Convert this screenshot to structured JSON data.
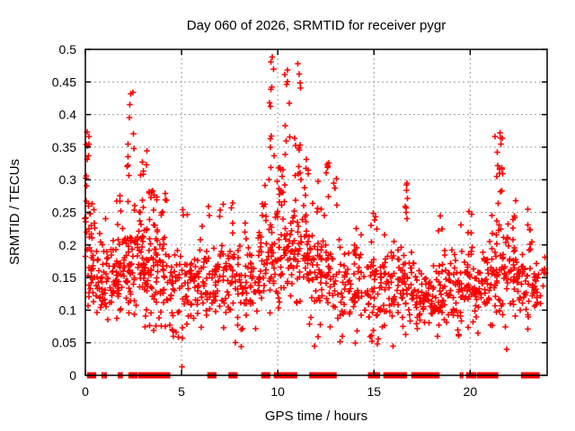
{
  "title": "Day 060 of 2026, SRMTID for receiver pygr",
  "chart_data": {
    "type": "scatter",
    "title": "Day 060 of 2026, SRMTID for receiver pygr",
    "xlabel": "GPS time / hours",
    "ylabel": "SRMTID / TECUs",
    "xlim": [
      0,
      24
    ],
    "ylim": [
      0,
      0.5
    ],
    "xtick_values": [
      0,
      5,
      10,
      15,
      20
    ],
    "xtick_labels": [
      "0",
      "5",
      "10",
      "15",
      "20"
    ],
    "ytick_values": [
      0,
      0.05,
      0.1,
      0.15,
      0.2,
      0.25,
      0.3,
      0.35,
      0.4,
      0.45,
      0.5
    ],
    "ytick_labels": [
      "0",
      "0.05",
      "0.1",
      "0.15",
      "0.2",
      "0.25",
      "0.3",
      "0.35",
      "0.4",
      "0.45",
      "0.5"
    ],
    "grid": true,
    "legend": "none",
    "marker": {
      "shape": "plus",
      "color": "#ff0000",
      "size": 7
    },
    "grid_color": "#9c9c9c",
    "axis_color": "#000000",
    "cloud_bins_format": [
      "hour_start",
      "hour_end",
      "count",
      "y_low",
      "y_high"
    ],
    "cloud_bins": [
      [
        0.0,
        0.5,
        40,
        0.09,
        0.3
      ],
      [
        0.5,
        1.0,
        30,
        0.09,
        0.2
      ],
      [
        1.0,
        1.5,
        32,
        0.09,
        0.22
      ],
      [
        1.5,
        2.0,
        36,
        0.08,
        0.24
      ],
      [
        2.0,
        2.5,
        38,
        0.09,
        0.26
      ],
      [
        2.5,
        3.0,
        38,
        0.09,
        0.26
      ],
      [
        3.0,
        3.5,
        40,
        0.08,
        0.26
      ],
      [
        3.5,
        4.0,
        36,
        0.08,
        0.24
      ],
      [
        4.0,
        4.5,
        30,
        0.08,
        0.22
      ],
      [
        4.5,
        5.0,
        26,
        0.07,
        0.2
      ],
      [
        5.0,
        5.5,
        26,
        0.06,
        0.2
      ],
      [
        5.5,
        6.0,
        28,
        0.08,
        0.21
      ],
      [
        6.0,
        6.5,
        28,
        0.08,
        0.22
      ],
      [
        6.5,
        7.0,
        26,
        0.08,
        0.2
      ],
      [
        7.0,
        7.5,
        26,
        0.08,
        0.21
      ],
      [
        7.5,
        8.0,
        26,
        0.05,
        0.22
      ],
      [
        8.0,
        8.5,
        28,
        0.08,
        0.22
      ],
      [
        8.5,
        9.0,
        26,
        0.08,
        0.2
      ],
      [
        9.0,
        9.5,
        30,
        0.09,
        0.24
      ],
      [
        9.5,
        10.0,
        34,
        0.1,
        0.28
      ],
      [
        10.0,
        10.5,
        34,
        0.1,
        0.3
      ],
      [
        10.5,
        11.0,
        32,
        0.1,
        0.28
      ],
      [
        11.0,
        11.5,
        32,
        0.1,
        0.3
      ],
      [
        11.5,
        12.0,
        30,
        0.08,
        0.26
      ],
      [
        12.0,
        12.5,
        30,
        0.07,
        0.24
      ],
      [
        12.5,
        13.0,
        28,
        0.08,
        0.22
      ],
      [
        13.0,
        13.5,
        22,
        0.06,
        0.2
      ],
      [
        13.5,
        14.0,
        22,
        0.07,
        0.2
      ],
      [
        14.0,
        14.5,
        26,
        0.06,
        0.22
      ],
      [
        14.5,
        15.0,
        28,
        0.05,
        0.22
      ],
      [
        15.0,
        15.5,
        28,
        0.05,
        0.2
      ],
      [
        15.5,
        16.0,
        28,
        0.06,
        0.2
      ],
      [
        16.0,
        16.5,
        30,
        0.07,
        0.2
      ],
      [
        16.5,
        17.0,
        30,
        0.06,
        0.24
      ],
      [
        17.0,
        17.5,
        28,
        0.07,
        0.18
      ],
      [
        17.5,
        18.0,
        26,
        0.06,
        0.18
      ],
      [
        18.0,
        18.5,
        28,
        0.06,
        0.18
      ],
      [
        18.5,
        19.0,
        28,
        0.06,
        0.19
      ],
      [
        19.0,
        19.5,
        28,
        0.07,
        0.2
      ],
      [
        19.5,
        20.0,
        30,
        0.07,
        0.22
      ],
      [
        20.0,
        20.5,
        30,
        0.07,
        0.2
      ],
      [
        20.5,
        21.0,
        30,
        0.08,
        0.2
      ],
      [
        21.0,
        21.5,
        32,
        0.08,
        0.24
      ],
      [
        21.5,
        22.0,
        32,
        0.08,
        0.25
      ],
      [
        22.0,
        22.5,
        30,
        0.08,
        0.22
      ],
      [
        22.5,
        23.0,
        28,
        0.08,
        0.2
      ],
      [
        23.0,
        23.5,
        26,
        0.09,
        0.2
      ],
      [
        23.5,
        24.0,
        10,
        0.1,
        0.18
      ]
    ],
    "peak_clusters_format": [
      "hour_center",
      "hour_halfwidth",
      "count",
      "y_min",
      "y_max"
    ],
    "peak_clusters": [
      [
        0.1,
        0.12,
        12,
        0.23,
        0.375
      ],
      [
        1.7,
        0.15,
        4,
        0.23,
        0.285
      ],
      [
        2.35,
        0.18,
        9,
        0.29,
        0.435
      ],
      [
        3.1,
        0.25,
        10,
        0.25,
        0.35
      ],
      [
        3.55,
        0.2,
        8,
        0.24,
        0.3
      ],
      [
        4.1,
        0.15,
        5,
        0.24,
        0.285
      ],
      [
        5.15,
        0.15,
        3,
        0.24,
        0.265
      ],
      [
        6.4,
        0.1,
        2,
        0.24,
        0.26
      ],
      [
        7.2,
        0.3,
        3,
        0.23,
        0.27
      ],
      [
        8.0,
        0.5,
        4,
        0.22,
        0.27
      ],
      [
        9.35,
        0.15,
        5,
        0.24,
        0.3
      ],
      [
        9.7,
        0.12,
        10,
        0.3,
        0.488
      ],
      [
        10.15,
        0.2,
        8,
        0.27,
        0.36
      ],
      [
        10.5,
        0.15,
        8,
        0.33,
        0.47
      ],
      [
        11.05,
        0.18,
        11,
        0.3,
        0.478
      ],
      [
        11.4,
        0.2,
        7,
        0.26,
        0.41
      ],
      [
        12.0,
        0.2,
        4,
        0.24,
        0.3
      ],
      [
        12.55,
        0.15,
        6,
        0.25,
        0.34
      ],
      [
        13.0,
        0.12,
        5,
        0.26,
        0.31
      ],
      [
        15.05,
        0.1,
        3,
        0.22,
        0.26
      ],
      [
        16.7,
        0.1,
        6,
        0.23,
        0.295
      ],
      [
        18.4,
        0.15,
        3,
        0.21,
        0.25
      ],
      [
        19.95,
        0.12,
        4,
        0.21,
        0.26
      ],
      [
        21.5,
        0.22,
        14,
        0.25,
        0.375
      ],
      [
        22.3,
        0.12,
        4,
        0.22,
        0.27
      ],
      [
        23.1,
        0.15,
        5,
        0.2,
        0.26
      ]
    ],
    "isolated_points": [
      [
        9.72,
        0.488
      ],
      [
        9.78,
        0.47
      ],
      [
        11.05,
        0.478
      ],
      [
        11.12,
        0.462
      ],
      [
        10.5,
        0.468
      ],
      [
        2.35,
        0.432
      ],
      [
        2.3,
        0.415
      ],
      [
        21.55,
        0.372
      ],
      [
        21.6,
        0.355
      ],
      [
        0.1,
        0.373
      ],
      [
        0.12,
        0.352
      ],
      [
        5.02,
        0.013
      ],
      [
        5.05,
        0.057
      ],
      [
        7.8,
        0.05
      ],
      [
        8.1,
        0.044
      ],
      [
        11.9,
        0.045
      ],
      [
        14.9,
        0.052
      ],
      [
        21.9,
        0.04
      ],
      [
        13.35,
        0.06
      ],
      [
        16.0,
        0.045
      ],
      [
        23.0,
        0.255
      ],
      [
        16.7,
        0.292
      ]
    ],
    "zero_value_runs_format": [
      "hour_start",
      "hour_end",
      "style(optional:thin)"
    ],
    "zero_value_runs": [
      [
        0.25,
        0.4
      ],
      [
        0.88,
        0.92,
        "thin"
      ],
      [
        1.03,
        1.07,
        "thin"
      ],
      [
        1.73,
        1.77,
        "thin"
      ],
      [
        1.86,
        1.9,
        "thin"
      ],
      [
        2.4,
        2.55
      ],
      [
        2.9,
        3.05
      ],
      [
        3.3,
        3.9
      ],
      [
        4.05,
        4.25
      ],
      [
        6.5,
        6.65
      ],
      [
        7.6,
        7.75
      ],
      [
        9.3,
        9.45
      ],
      [
        9.95,
        10.4
      ],
      [
        10.7,
        10.85
      ],
      [
        11.8,
        11.95
      ],
      [
        12.15,
        12.6
      ],
      [
        12.7,
        12.9
      ],
      [
        14.85,
        15.15
      ],
      [
        15.65,
        15.95
      ],
      [
        16.2,
        16.3
      ],
      [
        16.4,
        16.55
      ],
      [
        17.1,
        17.75
      ],
      [
        17.85,
        17.95
      ],
      [
        18.1,
        18.25
      ],
      [
        19.5,
        19.6,
        "thin"
      ],
      [
        19.95,
        20.15
      ],
      [
        20.5,
        20.65
      ],
      [
        20.85,
        21.0
      ],
      [
        21.1,
        21.3
      ],
      [
        22.8,
        22.8
      ],
      [
        23.0,
        23.1
      ],
      [
        23.4,
        23.45
      ]
    ]
  }
}
